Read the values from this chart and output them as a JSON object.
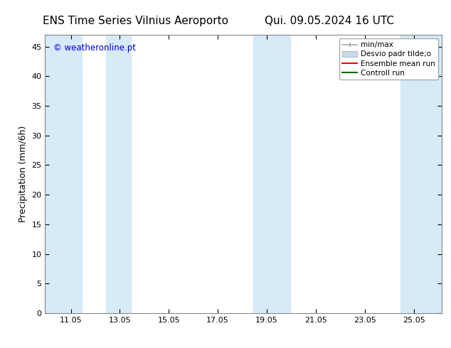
{
  "title_left": "ENS Time Series Vilnius Aeroporto",
  "title_right": "Qui. 09.05.2024 16 UTC",
  "ylabel": "Precipitation (mm/6h)",
  "watermark": "© weatheronline.pt",
  "watermark_color": "#0000cc",
  "xlim_start": 10.0,
  "xlim_end": 26.2,
  "ylim_min": 0,
  "ylim_max": 47,
  "xticks": [
    11.05,
    13.05,
    15.05,
    17.05,
    19.05,
    21.05,
    23.05,
    25.05
  ],
  "yticks": [
    0,
    5,
    10,
    15,
    20,
    25,
    30,
    35,
    40,
    45
  ],
  "shaded_regions": [
    [
      10.0,
      11.5
    ],
    [
      12.5,
      13.5
    ],
    [
      18.5,
      20.0
    ],
    [
      24.5,
      26.2
    ]
  ],
  "shade_color": "#d6eaf8",
  "background_color": "#ffffff",
  "legend_minmax_color": "#aaaaaa",
  "legend_desvio_color": "#c8d8e8",
  "legend_ens_color": "#ff0000",
  "legend_ctrl_color": "#006600",
  "title_fontsize": 11,
  "axis_fontsize": 9,
  "tick_fontsize": 8,
  "legend_fontsize": 7.5
}
